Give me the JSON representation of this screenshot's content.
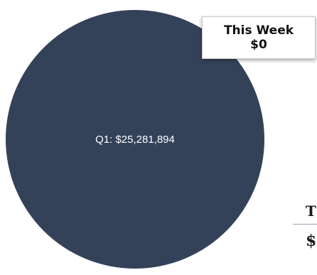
{
  "chart_data": {
    "type": "pie",
    "slices": [
      {
        "label": "Q1: $25,281,894",
        "value": 25281894,
        "color": "#344259"
      }
    ],
    "legend": "none"
  },
  "week_summary": {
    "label": "This Week",
    "value": "$0"
  },
  "side_panel": {
    "label": "T",
    "value": "$"
  }
}
